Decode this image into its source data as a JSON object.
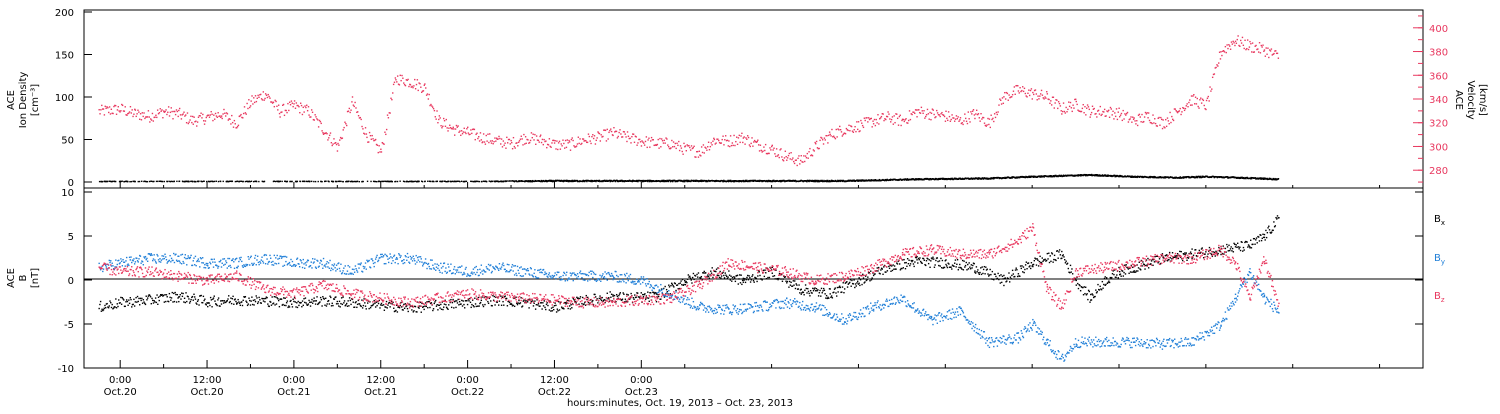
{
  "chart_data": [
    {
      "type": "scatter",
      "panel": "ion-density-velocity",
      "left_axis": {
        "label_lines": [
          "ACE",
          "Ion Density",
          "[cm⁻³]"
        ],
        "ylim": [
          0,
          200
        ],
        "ticks": [
          "0",
          "50",
          "100",
          "150",
          "200"
        ]
      },
      "right_axis": {
        "label_lines": [
          "ACE",
          "Velocity",
          "[km/s]"
        ],
        "ylim": [
          265,
          415
        ],
        "ticks": [
          "280",
          "300",
          "320",
          "340",
          "360",
          "380",
          "400"
        ],
        "color": "#e8385f"
      },
      "series": [
        {
          "color": "#e8385f",
          "axis": "right",
          "points": [
            [
              -3,
              330
            ],
            [
              0,
              332
            ],
            [
              2,
              328
            ],
            [
              4,
              326
            ],
            [
              6,
              330
            ],
            [
              8,
              328
            ],
            [
              10,
              322
            ],
            [
              12,
              325
            ],
            [
              14,
              328
            ],
            [
              16,
              320
            ],
            [
              18,
              338
            ],
            [
              20,
              345
            ],
            [
              22,
              330
            ],
            [
              24,
              335
            ],
            [
              26,
              330
            ],
            [
              28,
              315
            ],
            [
              30,
              300
            ],
            [
              32,
              338
            ],
            [
              34,
              310
            ],
            [
              36,
              296
            ],
            [
              38,
              358
            ],
            [
              40,
              355
            ],
            [
              42,
              350
            ],
            [
              44,
              322
            ],
            [
              46,
              315
            ],
            [
              48,
              312
            ],
            [
              50,
              308
            ],
            [
              52,
              305
            ],
            [
              54,
              303
            ],
            [
              56,
              308
            ],
            [
              58,
              306
            ],
            [
              60,
              302
            ],
            [
              62,
              302
            ],
            [
              64,
              306
            ],
            [
              66,
              308
            ],
            [
              68,
              312
            ],
            [
              70,
              308
            ],
            [
              72,
              305
            ],
            [
              74,
              303
            ],
            [
              76,
              303
            ],
            [
              78,
              298
            ],
            [
              80,
              296
            ],
            [
              82,
              306
            ],
            [
              84,
              305
            ],
            [
              86,
              308
            ],
            [
              88,
              302
            ],
            [
              90,
              298
            ],
            [
              92,
              292
            ],
            [
              94,
              288
            ],
            [
              96,
              300
            ],
            [
              98,
              310
            ],
            [
              100,
              315
            ],
            [
              102,
              318
            ],
            [
              104,
              322
            ],
            [
              106,
              325
            ],
            [
              108,
              322
            ],
            [
              110,
              330
            ],
            [
              112,
              328
            ],
            [
              114,
              326
            ],
            [
              116,
              322
            ],
            [
              118,
              328
            ],
            [
              120,
              320
            ],
            [
              122,
              342
            ],
            [
              124,
              348
            ],
            [
              126,
              345
            ],
            [
              128,
              342
            ],
            [
              130,
              332
            ],
            [
              132,
              336
            ],
            [
              134,
              330
            ],
            [
              136,
              330
            ],
            [
              138,
              328
            ],
            [
              140,
              322
            ],
            [
              142,
              326
            ],
            [
              144,
              320
            ],
            [
              146,
              330
            ],
            [
              148,
              340
            ],
            [
              150,
              335
            ],
            [
              152,
              380
            ],
            [
              154,
              390
            ],
            [
              156,
              385
            ],
            [
              158,
              382
            ],
            [
              160,
              376
            ]
          ]
        },
        {
          "color": "#000000",
          "axis": "left",
          "points": [
            [
              -3,
              1
            ],
            [
              0,
              1
            ],
            [
              10,
              1
            ],
            [
              20,
              1
            ],
            [
              30,
              1
            ],
            [
              40,
              1
            ],
            [
              50,
              1
            ],
            [
              60,
              2
            ],
            [
              70,
              2
            ],
            [
              80,
              2
            ],
            [
              90,
              2
            ],
            [
              100,
              2
            ],
            [
              110,
              4
            ],
            [
              120,
              5
            ],
            [
              126,
              7
            ],
            [
              130,
              8
            ],
            [
              134,
              9
            ],
            [
              140,
              7
            ],
            [
              146,
              6
            ],
            [
              150,
              7
            ],
            [
              154,
              6
            ],
            [
              160,
              4
            ]
          ]
        }
      ]
    },
    {
      "type": "scatter",
      "panel": "magnetic-field",
      "left_axis": {
        "label_lines": [
          "ACE",
          "B",
          "[nT]"
        ],
        "ylim": [
          -10,
          10
        ],
        "ticks": [
          "-10",
          "-5",
          "0",
          "5",
          "10"
        ]
      },
      "legend": [
        {
          "base": "B",
          "sub": "x",
          "color": "#000000"
        },
        {
          "base": "B",
          "sub": "y",
          "color": "#2280d8"
        },
        {
          "base": "B",
          "sub": "z",
          "color": "#e8385f"
        }
      ],
      "series": [
        {
          "color": "#000000",
          "points": [
            [
              -3,
              -3
            ],
            [
              0,
              -2.5
            ],
            [
              4,
              -2.2
            ],
            [
              8,
              -1.8
            ],
            [
              12,
              -2.4
            ],
            [
              16,
              -2.2
            ],
            [
              20,
              -2.3
            ],
            [
              24,
              -2.5
            ],
            [
              28,
              -2.3
            ],
            [
              32,
              -2.5
            ],
            [
              36,
              -2.8
            ],
            [
              40,
              -3.1
            ],
            [
              44,
              -2.8
            ],
            [
              48,
              -2.5
            ],
            [
              52,
              -2.2
            ],
            [
              56,
              -2.5
            ],
            [
              60,
              -3
            ],
            [
              64,
              -2.3
            ],
            [
              68,
              -1.8
            ],
            [
              70,
              -2
            ],
            [
              74,
              -1.8
            ],
            [
              78,
              0
            ],
            [
              82,
              1
            ],
            [
              86,
              0
            ],
            [
              90,
              1
            ],
            [
              94,
              -1
            ],
            [
              98,
              -1.5
            ],
            [
              102,
              0
            ],
            [
              106,
              1.5
            ],
            [
              110,
              2.2
            ],
            [
              114,
              2
            ],
            [
              118,
              1.5
            ],
            [
              122,
              0
            ],
            [
              126,
              2
            ],
            [
              130,
              3
            ],
            [
              132,
              0
            ],
            [
              134,
              -2
            ],
            [
              136,
              0
            ],
            [
              138,
              1
            ],
            [
              140,
              1.5
            ],
            [
              144,
              2.5
            ],
            [
              148,
              3
            ],
            [
              152,
              3.5
            ],
            [
              156,
              4
            ],
            [
              158,
              5
            ],
            [
              160,
              7
            ]
          ]
        },
        {
          "color": "#2280d8",
          "points": [
            [
              -3,
              1.5
            ],
            [
              0,
              2
            ],
            [
              4,
              2.5
            ],
            [
              8,
              2.5
            ],
            [
              12,
              2
            ],
            [
              16,
              2
            ],
            [
              20,
              2.5
            ],
            [
              24,
              2
            ],
            [
              28,
              2
            ],
            [
              32,
              1
            ],
            [
              36,
              2.5
            ],
            [
              40,
              2.5
            ],
            [
              44,
              1.5
            ],
            [
              48,
              1
            ],
            [
              52,
              1.5
            ],
            [
              56,
              1
            ],
            [
              60,
              0.5
            ],
            [
              64,
              0.5
            ],
            [
              68,
              0.5
            ],
            [
              72,
              0
            ],
            [
              76,
              -1.5
            ],
            [
              80,
              -3
            ],
            [
              84,
              -3.3
            ],
            [
              88,
              -3
            ],
            [
              92,
              -2.5
            ],
            [
              96,
              -3
            ],
            [
              100,
              -4.5
            ],
            [
              104,
              -3
            ],
            [
              108,
              -2
            ],
            [
              112,
              -4.5
            ],
            [
              116,
              -3.5
            ],
            [
              120,
              -7
            ],
            [
              124,
              -6.5
            ],
            [
              126,
              -5
            ],
            [
              128,
              -7
            ],
            [
              130,
              -9
            ],
            [
              132,
              -7
            ],
            [
              136,
              -7
            ],
            [
              140,
              -7
            ],
            [
              144,
              -7.2
            ],
            [
              148,
              -7
            ],
            [
              152,
              -5
            ],
            [
              154,
              -2
            ],
            [
              156,
              1
            ],
            [
              158,
              -2
            ],
            [
              160,
              -3.5
            ]
          ]
        },
        {
          "color": "#e8385f",
          "points": [
            [
              -3,
              1.5
            ],
            [
              0,
              1
            ],
            [
              4,
              1
            ],
            [
              8,
              0.5
            ],
            [
              12,
              0
            ],
            [
              16,
              0.5
            ],
            [
              20,
              -1
            ],
            [
              24,
              -1.5
            ],
            [
              28,
              -0.5
            ],
            [
              32,
              -1.5
            ],
            [
              36,
              -2
            ],
            [
              40,
              -2.5
            ],
            [
              44,
              -2
            ],
            [
              48,
              -1.5
            ],
            [
              52,
              -1.8
            ],
            [
              56,
              -2
            ],
            [
              60,
              -2.2
            ],
            [
              64,
              -2.5
            ],
            [
              68,
              -2.5
            ],
            [
              72,
              -2.2
            ],
            [
              76,
              -2
            ],
            [
              80,
              -0.5
            ],
            [
              84,
              2
            ],
            [
              88,
              1.5
            ],
            [
              92,
              1
            ],
            [
              96,
              0
            ],
            [
              100,
              0.5
            ],
            [
              104,
              1.5
            ],
            [
              108,
              3
            ],
            [
              112,
              3.5
            ],
            [
              116,
              3
            ],
            [
              120,
              3
            ],
            [
              124,
              4.5
            ],
            [
              126,
              6
            ],
            [
              128,
              -1
            ],
            [
              130,
              -3
            ],
            [
              132,
              1
            ],
            [
              136,
              1.5
            ],
            [
              140,
              2
            ],
            [
              144,
              2.5
            ],
            [
              148,
              2.5
            ],
            [
              152,
              3.5
            ],
            [
              154,
              2
            ],
            [
              156,
              -2
            ],
            [
              158,
              2.5
            ],
            [
              160,
              -3
            ]
          ]
        }
      ]
    }
  ],
  "x_axis": {
    "label": "hours:minutes, Oct. 19, 2013 – Oct. 23, 2013",
    "range_hours": [
      -5,
      180
    ],
    "major_ticks": [
      {
        "h": 0,
        "time": "0:00",
        "date": "Oct.20"
      },
      {
        "h": 12,
        "time": "12:00",
        "date": "Oct.20"
      },
      {
        "h": 24,
        "time": "0:00",
        "date": "Oct.21"
      },
      {
        "h": 36,
        "time": "12:00",
        "date": "Oct.21"
      },
      {
        "h": 48,
        "time": "0:00",
        "date": "Oct.22"
      },
      {
        "h": 60,
        "time": "12:00",
        "date": "Oct.22"
      },
      {
        "h": 72,
        "time": "0:00",
        "date": "Oct.23"
      }
    ]
  }
}
